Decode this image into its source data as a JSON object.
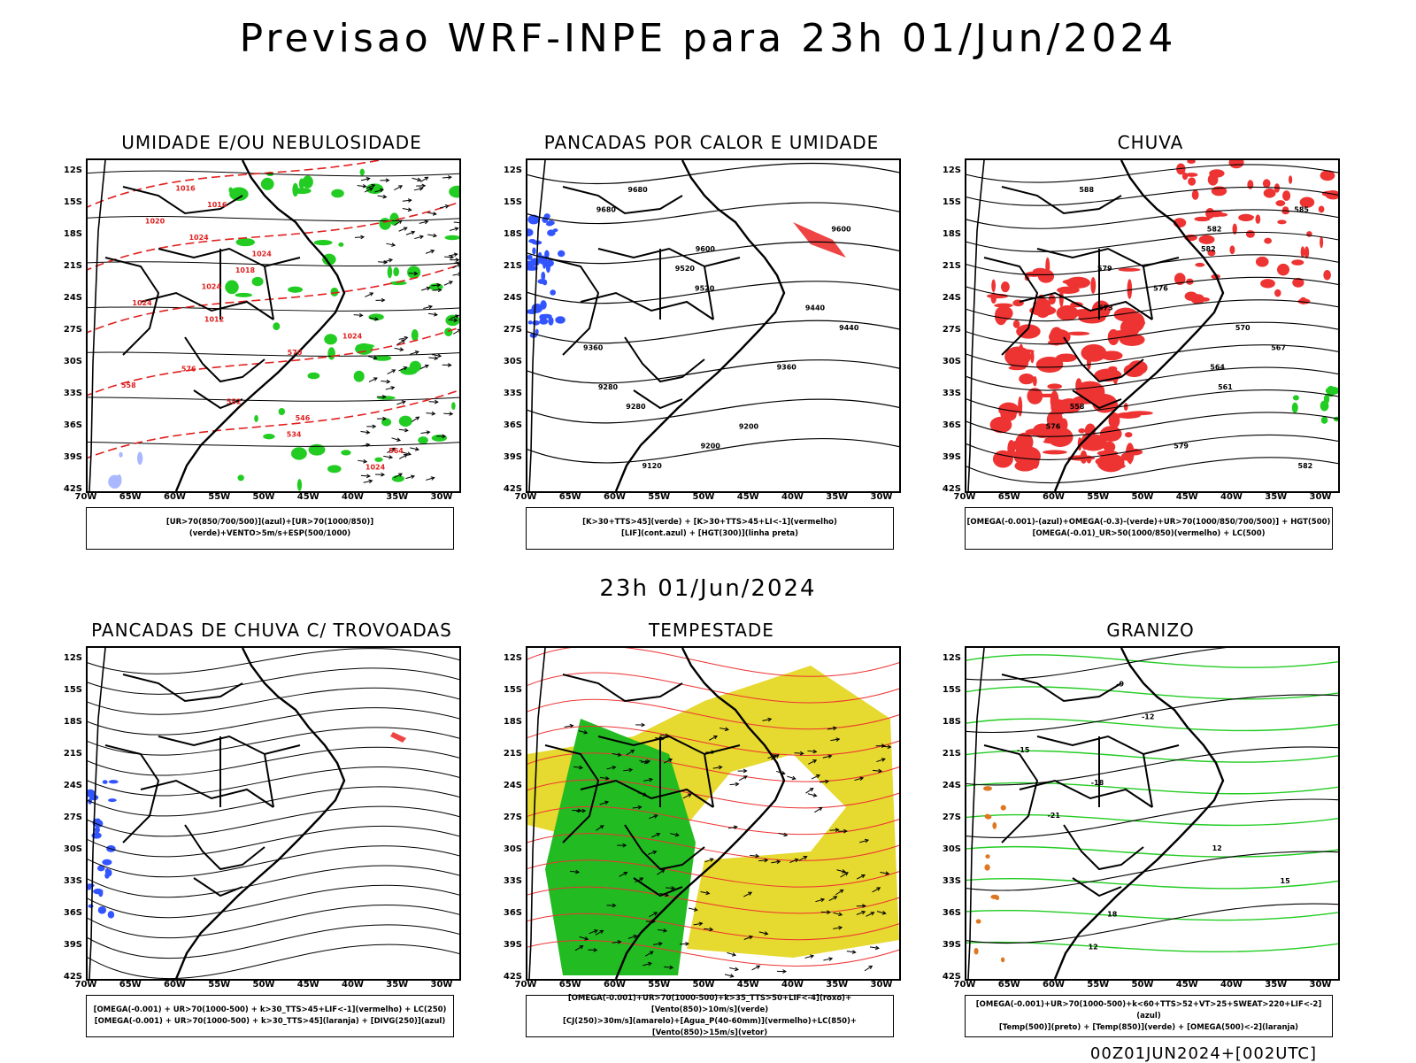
{
  "title": "Previsao WRF-INPE  para 23h 01/Jun/2024",
  "subtitle": "23h 01/Jun/2024",
  "footer": "00Z01JUN2024+[002UTC]",
  "lat_labels": [
    "12S",
    "15S",
    "18S",
    "21S",
    "24S",
    "27S",
    "30S",
    "33S",
    "36S",
    "39S",
    "42S"
  ],
  "lon_labels": [
    "70W",
    "65W",
    "60W",
    "55W",
    "50W",
    "45W",
    "40W",
    "35W",
    "30W"
  ],
  "panels": [
    {
      "title": "UMIDADE E/OU NEBULOSIDADE",
      "legend": [
        "[UR>70(850/700/500)](azul)+[UR>70(1000/850)](verde)+VENTO>5m/s+ESP(500/1000)"
      ],
      "labels": [
        "1016",
        "1016",
        "1020",
        "1024",
        "1024",
        "1018",
        "1024",
        "1024",
        "1012",
        "1024",
        "570",
        "576",
        "558",
        "552",
        "546",
        "534",
        "564",
        "1024"
      ]
    },
    {
      "title": "PANCADAS POR CALOR E UMIDADE",
      "legend": [
        "[K>30+TTS>45](verde) + [K>30+TTS>45+LI<-1](vermelho)",
        "[LIF](cont.azul) + [HGT(300)](linha preta)"
      ],
      "labels": [
        "9680",
        "9680",
        "9600",
        "9600",
        "9520",
        "9520",
        "9440",
        "9440",
        "9360",
        "9360",
        "9280",
        "9280",
        "9200",
        "9200",
        "9120"
      ]
    },
    {
      "title": "CHUVA",
      "legend": [
        "[OMEGA(-0.001)-(azul)+OMEGA(-0.3)-(verde)+UR>70(1000/850/700/500)] + HGT(500)",
        "[OMEGA(-0.01)_UR>50(1000/850)(vermelho) + LC(500)"
      ],
      "labels": [
        "588",
        "585",
        "582",
        "582",
        "579",
        "576",
        "573",
        "570",
        "567",
        "564",
        "561",
        "558",
        "576",
        "579",
        "582"
      ]
    },
    {
      "title": "PANCADAS DE CHUVA C/ TROVOADAS",
      "legend": [
        "[OMEGA(-0.001) + UR>70(1000-500) + k>30_TTS>45+LIF<-1](vermelho) + LC(250)",
        "[OMEGA(-0.001) + UR>70(1000-500) + k>30_TTS>45](laranja) + [DIVG(250)](azul)"
      ],
      "labels": []
    },
    {
      "title": "TEMPESTADE",
      "legend": [
        "[OMEGA(-0.001)+UR>70(1000-500)+k>35_TTS>50+LIF<-4](roxo)+[Vento(850)>10m/s](verde)",
        "[CJ(250)>30m/s](amarelo)+[Agua_P(40-60mm)](vermelho)+LC(850)+[Vento(850)>15m/s](vetor)"
      ],
      "labels": []
    },
    {
      "title": "GRANIZO",
      "legend": [
        "[OMEGA(-0.001)+UR>70(1000-500)+k<60+TTS>52+VT>25+SWEAT>220+LIF<-2](azul)",
        "[Temp(500)](preto) + [Temp(850)](verde) + [OMEGA(500)<-2](laranja)"
      ],
      "labels": [
        "-9",
        "-12",
        "-15",
        "-18",
        "-21",
        "12",
        "15",
        "18",
        "12"
      ]
    }
  ]
}
